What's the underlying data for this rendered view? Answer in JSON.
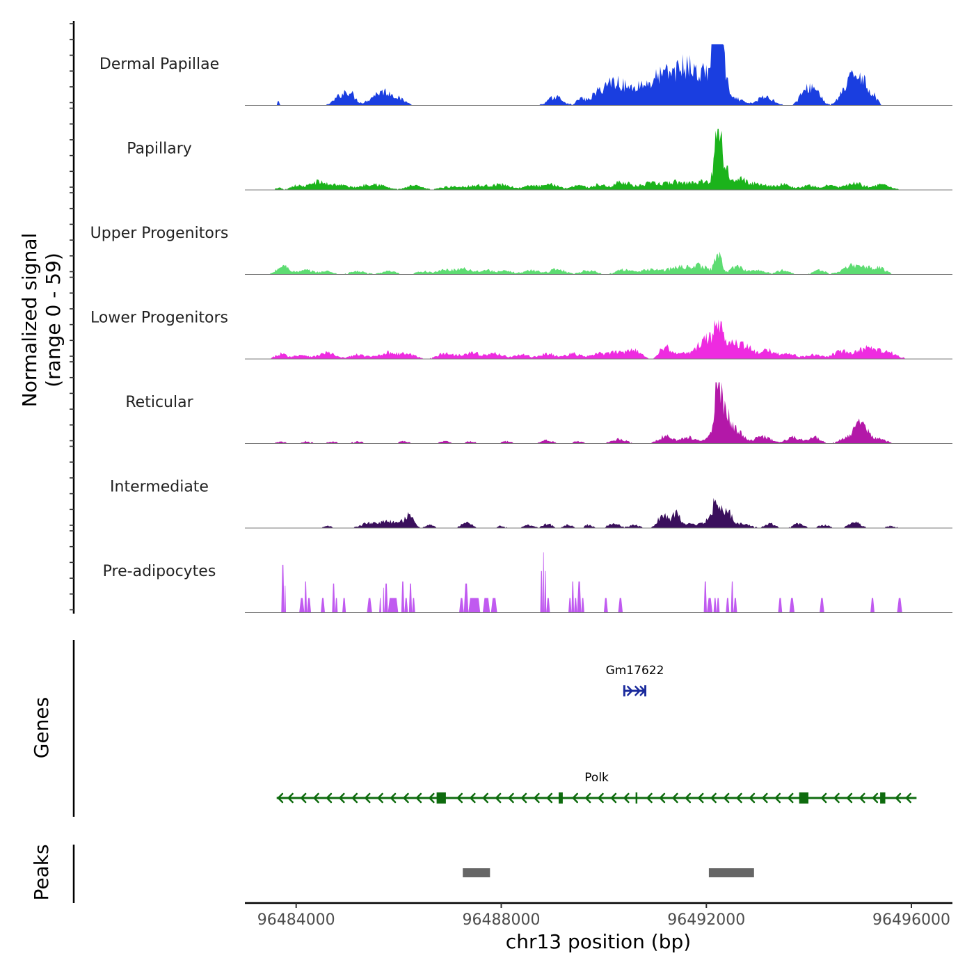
{
  "chart_data": {
    "type": "area",
    "title": "",
    "ylabel_line1": "Normalized signal",
    "ylabel_line2": "(range 0 - 59)",
    "xlabel": "chr13 position (bp)",
    "xlim": [
      96483000,
      96496800
    ],
    "ylim": [
      0,
      59
    ],
    "x_ticks": [
      96484000,
      96488000,
      96492000,
      96496000
    ],
    "x_tick_labels": [
      "96484000",
      "96488000",
      "96492000",
      "96496000"
    ],
    "tracks": [
      {
        "name": "Dermal Papillae",
        "color": "#1a3ee0",
        "binary": false,
        "peaks": [
          [
            96483650,
            4,
            20
          ],
          [
            96484880,
            9,
            130
          ],
          [
            96485060,
            9,
            100
          ],
          [
            96485620,
            10,
            180
          ],
          [
            96485900,
            7,
            200
          ],
          [
            96489060,
            8,
            140
          ],
          [
            96489550,
            6,
            80
          ],
          [
            96489850,
            9,
            130
          ],
          [
            96490100,
            12,
            140
          ],
          [
            96490350,
            18,
            200
          ],
          [
            96490700,
            12,
            120
          ],
          [
            96490950,
            15,
            150
          ],
          [
            96491180,
            20,
            160
          ],
          [
            96491450,
            22,
            160
          ],
          [
            96491700,
            28,
            160
          ],
          [
            96492000,
            25,
            120
          ],
          [
            96492150,
            44,
            60
          ],
          [
            96492230,
            52,
            60
          ],
          [
            96492320,
            40,
            80
          ],
          [
            96492600,
            6,
            120
          ],
          [
            96493150,
            8,
            160
          ],
          [
            96493950,
            14,
            120
          ],
          [
            96494150,
            12,
            100
          ],
          [
            96494700,
            12,
            120
          ],
          [
            96494900,
            22,
            110
          ],
          [
            96495050,
            18,
            100
          ],
          [
            96495250,
            9,
            80
          ]
        ]
      },
      {
        "name": "Papillary",
        "color": "#1bb31b",
        "binary": false,
        "peaks": [
          [
            96483650,
            2,
            60
          ],
          [
            96484000,
            4,
            120
          ],
          [
            96484400,
            7,
            150
          ],
          [
            96484800,
            5,
            200
          ],
          [
            96485500,
            6,
            220
          ],
          [
            96486300,
            4,
            150
          ],
          [
            96487000,
            3,
            200
          ],
          [
            96487500,
            4,
            200
          ],
          [
            96488000,
            5,
            200
          ],
          [
            96488600,
            4,
            150
          ],
          [
            96489000,
            5,
            150
          ],
          [
            96489500,
            5,
            120
          ],
          [
            96489900,
            5,
            120
          ],
          [
            96490350,
            8,
            150
          ],
          [
            96490900,
            6,
            200
          ],
          [
            96491400,
            7,
            200
          ],
          [
            96491900,
            8,
            200
          ],
          [
            96492170,
            14,
            60
          ],
          [
            96492230,
            59,
            45
          ],
          [
            96492330,
            24,
            80
          ],
          [
            96492600,
            12,
            130
          ],
          [
            96493000,
            6,
            200
          ],
          [
            96493500,
            5,
            150
          ],
          [
            96494000,
            4,
            150
          ],
          [
            96494400,
            4,
            120
          ],
          [
            96494900,
            6,
            200
          ],
          [
            96495450,
            5,
            150
          ]
        ]
      },
      {
        "name": "Upper Progenitors",
        "color": "#5ddc72",
        "binary": false,
        "peaks": [
          [
            96483750,
            8,
            120
          ],
          [
            96484200,
            4,
            150
          ],
          [
            96484600,
            3,
            120
          ],
          [
            96485200,
            3,
            150
          ],
          [
            96485800,
            3,
            150
          ],
          [
            96486500,
            3,
            150
          ],
          [
            96486900,
            4,
            120
          ],
          [
            96487250,
            6,
            150
          ],
          [
            96487700,
            4,
            150
          ],
          [
            96488100,
            3,
            150
          ],
          [
            96488600,
            4,
            150
          ],
          [
            96489100,
            5,
            150
          ],
          [
            96489700,
            4,
            150
          ],
          [
            96490400,
            5,
            150
          ],
          [
            96490900,
            5,
            150
          ],
          [
            96491400,
            6,
            200
          ],
          [
            96491850,
            8,
            200
          ],
          [
            96492230,
            22,
            60
          ],
          [
            96492600,
            8,
            120
          ],
          [
            96493000,
            4,
            150
          ],
          [
            96493500,
            4,
            120
          ],
          [
            96494200,
            4,
            120
          ],
          [
            96494900,
            9,
            200
          ],
          [
            96495350,
            6,
            150
          ]
        ]
      },
      {
        "name": "Lower Progenitors",
        "color": "#ee2be0",
        "binary": false,
        "peaks": [
          [
            96483700,
            5,
            100
          ],
          [
            96484100,
            4,
            150
          ],
          [
            96484600,
            6,
            150
          ],
          [
            96485200,
            4,
            150
          ],
          [
            96485800,
            6,
            200
          ],
          [
            96486200,
            4,
            150
          ],
          [
            96486900,
            5,
            150
          ],
          [
            96487400,
            6,
            200
          ],
          [
            96487900,
            5,
            150
          ],
          [
            96488400,
            4,
            150
          ],
          [
            96488900,
            5,
            150
          ],
          [
            96489400,
            5,
            150
          ],
          [
            96489900,
            5,
            150
          ],
          [
            96490200,
            5,
            120
          ],
          [
            96490550,
            10,
            150
          ],
          [
            96491180,
            12,
            90
          ],
          [
            96491500,
            6,
            150
          ],
          [
            96491900,
            8,
            150
          ],
          [
            96492000,
            12,
            120
          ],
          [
            96492230,
            28,
            90
          ],
          [
            96492500,
            18,
            140
          ],
          [
            96492800,
            10,
            120
          ],
          [
            96493200,
            8,
            150
          ],
          [
            96493600,
            5,
            150
          ],
          [
            96494100,
            4,
            150
          ],
          [
            96494600,
            6,
            150
          ],
          [
            96495150,
            10,
            250
          ],
          [
            96495600,
            4,
            150
          ]
        ]
      },
      {
        "name": "Reticular",
        "color": "#b318a8",
        "binary": false,
        "peaks": [
          [
            96483700,
            2,
            80
          ],
          [
            96484200,
            2,
            100
          ],
          [
            96484700,
            2,
            100
          ],
          [
            96485200,
            2,
            100
          ],
          [
            96486100,
            2,
            100
          ],
          [
            96486900,
            2,
            100
          ],
          [
            96487400,
            2,
            100
          ],
          [
            96488100,
            2,
            100
          ],
          [
            96488900,
            3,
            120
          ],
          [
            96489500,
            2,
            100
          ],
          [
            96490300,
            4,
            150
          ],
          [
            96491200,
            7,
            130
          ],
          [
            96491650,
            6,
            150
          ],
          [
            96492050,
            4,
            100
          ],
          [
            96492230,
            58,
            70
          ],
          [
            96492380,
            25,
            90
          ],
          [
            96492600,
            12,
            120
          ],
          [
            96493100,
            7,
            150
          ],
          [
            96493700,
            6,
            150
          ],
          [
            96494100,
            6,
            120
          ],
          [
            96494800,
            7,
            160
          ],
          [
            96495050,
            18,
            120
          ],
          [
            96495400,
            4,
            120
          ]
        ]
      },
      {
        "name": "Intermediate",
        "color": "#3a0f5c",
        "binary": false,
        "peaks": [
          [
            96484620,
            2,
            80
          ],
          [
            96485400,
            4,
            150
          ],
          [
            96485800,
            6,
            200
          ],
          [
            96486190,
            12,
            90
          ],
          [
            96486600,
            3,
            80
          ],
          [
            96487330,
            5,
            110
          ],
          [
            96488000,
            2,
            80
          ],
          [
            96488530,
            3,
            90
          ],
          [
            96488900,
            4,
            90
          ],
          [
            96489300,
            3,
            80
          ],
          [
            96489700,
            3,
            80
          ],
          [
            96490200,
            4,
            120
          ],
          [
            96490600,
            3,
            100
          ],
          [
            96491150,
            12,
            100
          ],
          [
            96491410,
            14,
            80
          ],
          [
            96491700,
            4,
            100
          ],
          [
            96491980,
            6,
            100
          ],
          [
            96492200,
            28,
            80
          ],
          [
            96492420,
            16,
            80
          ],
          [
            96492700,
            4,
            150
          ],
          [
            96493250,
            4,
            100
          ],
          [
            96493800,
            4,
            100
          ],
          [
            96494300,
            3,
            100
          ],
          [
            96494900,
            5,
            120
          ],
          [
            96495600,
            2,
            100
          ]
        ]
      },
      {
        "name": "Pre-adipocytes",
        "color": "#c05af0",
        "binary": true,
        "blocks": [
          [
            96483710,
            96483770,
            46
          ],
          [
            96483770,
            96483800,
            26
          ],
          [
            96484060,
            96484160,
            14
          ],
          [
            96484160,
            96484210,
            30
          ],
          [
            96484210,
            96484290,
            14
          ],
          [
            96484480,
            96484560,
            14
          ],
          [
            96484700,
            96484760,
            28
          ],
          [
            96484760,
            96484810,
            14
          ],
          [
            96484900,
            96484970,
            14
          ],
          [
            96485380,
            96485480,
            14
          ],
          [
            96485620,
            96485660,
            14
          ],
          [
            96485690,
            96485720,
            24
          ],
          [
            96485720,
            96485790,
            28
          ],
          [
            96485790,
            96485990,
            14
          ],
          [
            96486050,
            96486110,
            30
          ],
          [
            96486110,
            96486180,
            14
          ],
          [
            96486200,
            96486260,
            28
          ],
          [
            96486260,
            96486320,
            14
          ],
          [
            96487180,
            96487270,
            14
          ],
          [
            96487270,
            96487360,
            28
          ],
          [
            96487360,
            96487590,
            14
          ],
          [
            96487640,
            96487780,
            14
          ],
          [
            96487800,
            96487920,
            14
          ],
          [
            96488760,
            96488810,
            40
          ],
          [
            96488810,
            96488840,
            58
          ],
          [
            96488840,
            96488880,
            40
          ],
          [
            96488880,
            96488950,
            14
          ],
          [
            96489310,
            96489370,
            14
          ],
          [
            96489370,
            96489420,
            30
          ],
          [
            96489420,
            96489480,
            14
          ],
          [
            96489480,
            96489560,
            30
          ],
          [
            96489560,
            96489620,
            14
          ],
          [
            96490000,
            96490080,
            14
          ],
          [
            96490280,
            96490370,
            14
          ],
          [
            96491950,
            96492010,
            30
          ],
          [
            96492010,
            96492120,
            14
          ],
          [
            96492140,
            96492200,
            14
          ],
          [
            96492200,
            96492260,
            14
          ],
          [
            96492380,
            96492450,
            14
          ],
          [
            96492480,
            96492530,
            30
          ],
          [
            96492530,
            96492600,
            14
          ],
          [
            96493400,
            96493480,
            14
          ],
          [
            96493620,
            96493720,
            14
          ],
          [
            96494210,
            96494300,
            14
          ],
          [
            96495200,
            96495280,
            14
          ],
          [
            96495720,
            96495820,
            14
          ]
        ]
      }
    ],
    "genes": [
      {
        "name": "Gm17622",
        "color": "#1a2a9c",
        "strand": "+",
        "start": 96490380,
        "end": 96490830,
        "exons": [
          [
            96490380,
            96490420
          ],
          [
            96490790,
            96490830
          ]
        ],
        "arrows": [
          96490550,
          96490700
        ]
      },
      {
        "name": "Polk",
        "color": "#0e6b0e",
        "strand": "-",
        "start": 96483620,
        "end": 96496100,
        "exons": [
          [
            96486740,
            96486920
          ],
          [
            96489120,
            96489200
          ],
          [
            96490620,
            96490650
          ],
          [
            96493810,
            96493990
          ],
          [
            96495390,
            96495490
          ]
        ],
        "arrows": [
          96483850,
          96484100,
          96484350,
          96484600,
          96484850,
          96485100,
          96485350,
          96485600,
          96485850,
          96486100,
          96486350,
          96486600,
          96487150,
          96487400,
          96487650,
          96487900,
          96488150,
          96488400,
          96488650,
          96488900,
          96489400,
          96489650,
          96489900,
          96490150,
          96490400,
          96490850,
          96491100,
          96491350,
          96491600,
          96491850,
          96492100,
          96492350,
          96492600,
          96492850,
          96493100,
          96493350,
          96493600,
          96494250,
          96494500,
          96494750,
          96495000,
          96495250,
          96495700,
          96495900
        ]
      }
    ],
    "peaks": [
      [
        96487250,
        96487780
      ],
      [
        96492050,
        96492930
      ]
    ],
    "panel_labels": {
      "genes": "Genes",
      "peaks": "Peaks"
    }
  }
}
